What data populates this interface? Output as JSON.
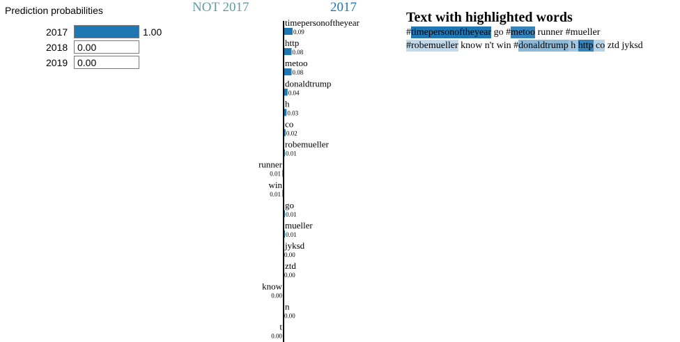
{
  "probabilities": {
    "title": "Prediction probabilities",
    "color": "#1f77b4",
    "rows": [
      {
        "label": "2017",
        "value": 1.0,
        "display": "1.00"
      },
      {
        "label": "2018",
        "value": 0.0,
        "display": "0.00"
      },
      {
        "label": "2019",
        "value": 0.0,
        "display": "0.00"
      }
    ]
  },
  "explanation": {
    "negative_label": "NOT 2017",
    "positive_label": "2017",
    "negative_color": "#5f9ea0",
    "positive_color": "#1f77b4"
  },
  "chart_data": {
    "type": "bar",
    "orientation": "horizontal",
    "title": "",
    "series": [
      {
        "name": "2017",
        "values": [
          0.09,
          0.08,
          0.08,
          0.04,
          0.03,
          0.02,
          0.01,
          0.01,
          0.01,
          0.01,
          0.01,
          0.0,
          0.0,
          0.0,
          0.0,
          0.0
        ]
      }
    ],
    "categories": [
      "timepersonoftheyear",
      "http",
      "metoo",
      "donaldtrump",
      "h",
      "co",
      "robemueller",
      "runner",
      "win",
      "go",
      "mueller",
      "jyksd",
      "ztd",
      "know",
      "n",
      "t"
    ],
    "values": [
      0.09,
      0.08,
      0.08,
      0.04,
      0.03,
      0.02,
      0.01,
      -0.01,
      -0.01,
      0.01,
      0.01,
      0.0,
      0.0,
      -0.0,
      0.0,
      -0.0
    ],
    "labels": [
      "0.09",
      "0.08",
      "0.08",
      "0.04",
      "0.03",
      "0.02",
      "0.01",
      "0.01",
      "0.01",
      "0.01",
      "0.01",
      "0.00",
      "0.00",
      "0.00",
      "0.00",
      "0.00"
    ],
    "sides": [
      "positive",
      "positive",
      "positive",
      "positive",
      "positive",
      "positive",
      "positive",
      "negative",
      "negative",
      "positive",
      "positive",
      "positive",
      "positive",
      "negative",
      "positive",
      "negative"
    ]
  },
  "highlight": {
    "title": "Text with highlighted words",
    "lines": [
      [
        {
          "text": "#",
          "w": 0
        },
        {
          "text": "timepersonoftheyear",
          "w": 0.09
        },
        {
          "text": " go #",
          "w": 0
        },
        {
          "text": "metoo",
          "w": 0.08
        },
        {
          "text": " runner #mueller",
          "w": 0
        }
      ],
      [
        {
          "text": "#robemueller",
          "w": 0.015
        },
        {
          "text": " know n't win #",
          "w": 0
        },
        {
          "text": "donaldtrump",
          "w": 0.04
        },
        {
          "text": " h ",
          "w": 0.03
        },
        {
          "text": "http",
          "w": 0.08
        },
        {
          "text": " co",
          "w": 0.02
        },
        {
          "text": " ztd jyksd",
          "w": 0
        }
      ]
    ]
  }
}
